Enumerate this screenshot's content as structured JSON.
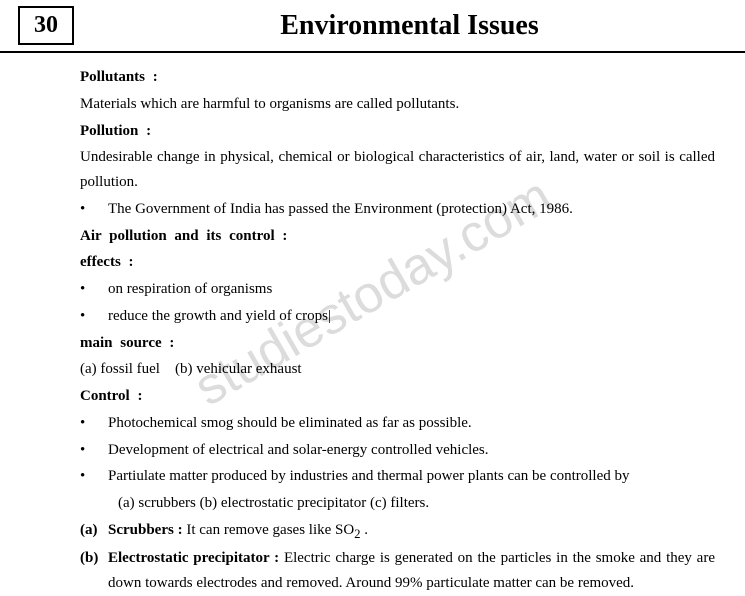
{
  "chapter_number": "30",
  "title": "Environmental Issues",
  "watermark": "studiestoday.com",
  "section1": {
    "head": "Pollutants :",
    "body": "Materials which are harmful to organisms are called pollutants."
  },
  "section2": {
    "head": "Pollution :",
    "body": "Undesirable change in physical, chemical or biological characteristics of air, land, water or soil is called pollution.",
    "bullet1": "The Government of India has passed the Environment (protection) Act, 1986."
  },
  "section3": {
    "head": "Air pollution and its control :"
  },
  "effects": {
    "head": "effects :",
    "b1": "on respiration of organisms",
    "b2": "reduce the growth and yield of crops|"
  },
  "source": {
    "head": "main source :",
    "a_label": "(a) fossil fuel",
    "b_label": "(b) vehicular exhaust"
  },
  "control": {
    "head": "Control :",
    "b1": "Photochemical smog should be eliminated as far as possible.",
    "b2": "Development of electrical and solar-energy controlled vehicles.",
    "b3": "Partiulate matter produced by industries and thermal power plants can be controlled by",
    "b3_sub": "(a) scrubbers   (b) electrostatic precipitator   (c) filters."
  },
  "scrubbers": {
    "label": "(a)",
    "head": "Scrubbers :",
    "body_pre": " It can remove gases like SO",
    "sub": "2",
    "body_post": " ."
  },
  "precip": {
    "label": "(b)",
    "head": "Electrostatic precipitator :",
    "body": " Electric charge is generated on the particles in the smoke and they are down towards electrodes and removed. Around 99% particulate matter can be removed."
  }
}
